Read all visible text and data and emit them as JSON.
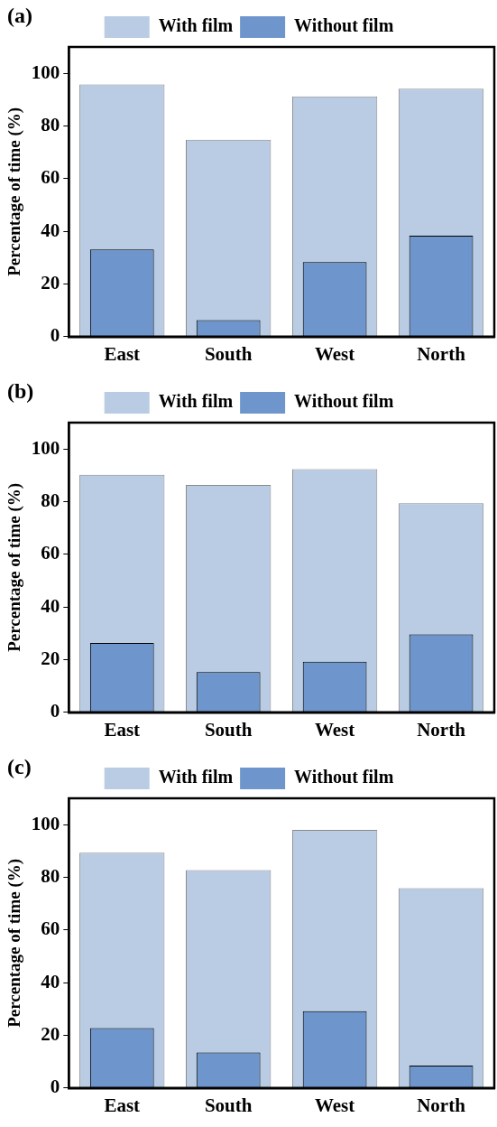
{
  "chart_data": [
    {
      "type": "bar",
      "title": "(a)",
      "ylabel": "Percentage of time (%)",
      "categories": [
        "East",
        "South",
        "West",
        "North"
      ],
      "ylim": [
        0,
        110
      ],
      "yticks": [
        0,
        20,
        40,
        60,
        80,
        100
      ],
      "grid": false,
      "legend": "top",
      "series": [
        {
          "name": "With film",
          "color": "#b9cce4",
          "values": [
            95.8,
            74.8,
            91.2,
            94.1
          ]
        },
        {
          "name": "Without film",
          "color": "#6f96cc",
          "values": [
            33.1,
            6.3,
            28.3,
            38.3
          ]
        }
      ]
    },
    {
      "type": "bar",
      "title": "(b)",
      "ylabel": "Percentage of time (%)",
      "categories": [
        "East",
        "South",
        "West",
        "North"
      ],
      "ylim": [
        0,
        110
      ],
      "yticks": [
        0,
        20,
        40,
        60,
        80,
        100
      ],
      "grid": false,
      "legend": "top",
      "series": [
        {
          "name": "With film",
          "color": "#b9cce4",
          "values": [
            90.2,
            86.3,
            92.3,
            79.4
          ]
        },
        {
          "name": "Without film",
          "color": "#6f96cc",
          "values": [
            26.3,
            15.3,
            19.2,
            29.6
          ]
        }
      ]
    },
    {
      "type": "bar",
      "title": "(c)",
      "ylabel": "Percentage of time (%)",
      "categories": [
        "East",
        "South",
        "West",
        "North"
      ],
      "ylim": [
        0,
        110
      ],
      "yticks": [
        0,
        20,
        40,
        60,
        80,
        100
      ],
      "grid": false,
      "legend": "top",
      "series": [
        {
          "name": "With film",
          "color": "#b9cce4",
          "values": [
            89.3,
            82.7,
            98.0,
            75.9
          ]
        },
        {
          "name": "Without film",
          "color": "#6f96cc",
          "values": [
            22.7,
            13.5,
            29.2,
            8.5
          ]
        }
      ]
    }
  ]
}
